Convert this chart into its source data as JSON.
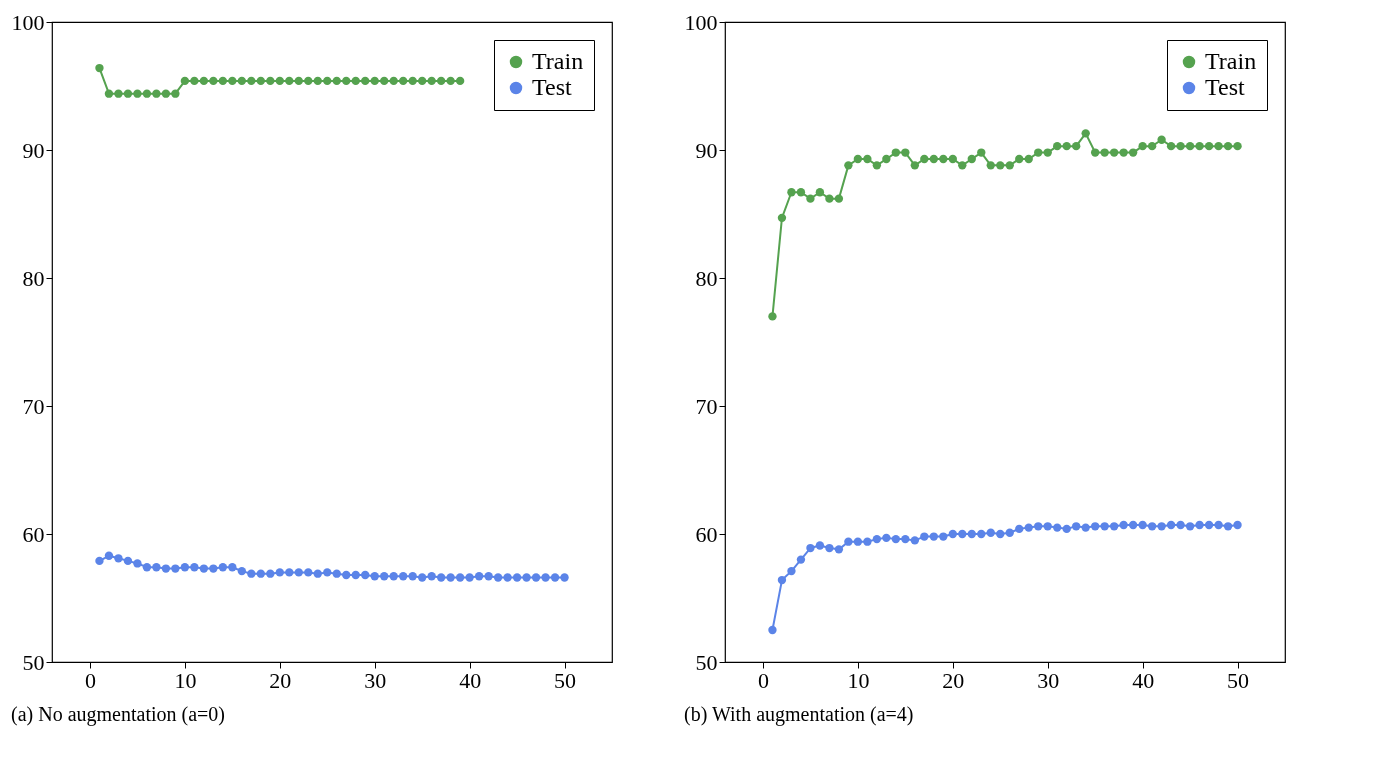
{
  "chart_data": [
    {
      "type": "line",
      "title": "(a) No augmentation (a=0)",
      "x": [
        1,
        2,
        3,
        4,
        5,
        6,
        7,
        8,
        9,
        10,
        11,
        12,
        13,
        14,
        15,
        16,
        17,
        18,
        19,
        20,
        21,
        22,
        23,
        24,
        25,
        26,
        27,
        28,
        29,
        30,
        31,
        32,
        33,
        34,
        35,
        36,
        37,
        38,
        39,
        40,
        41,
        42,
        43,
        44,
        45,
        46,
        47,
        48,
        49,
        50
      ],
      "xlim": [
        -4,
        55
      ],
      "xticks": [
        0,
        10,
        20,
        30,
        40,
        50
      ],
      "ylim": [
        50,
        100
      ],
      "yticks": [
        50,
        60,
        70,
        80,
        90,
        100
      ],
      "grid": false,
      "legend": "top right",
      "marker": "circle",
      "line_style": "solid",
      "series": [
        {
          "name": "Train",
          "color": "#55a24f",
          "values": [
            96.4,
            94.4,
            94.4,
            94.4,
            94.4,
            94.4,
            94.4,
            94.4,
            94.4,
            95.4,
            95.4,
            95.4,
            95.4,
            95.4,
            95.4,
            95.4,
            95.4,
            95.4,
            95.4,
            95.4,
            95.4,
            95.4,
            95.4,
            95.4,
            95.4,
            95.4,
            95.4,
            95.4,
            95.4,
            95.4,
            95.4,
            95.4,
            95.4,
            95.4,
            95.4,
            95.4,
            95.4,
            95.4,
            95.4,
            null,
            null,
            null,
            null,
            null,
            null,
            null,
            null,
            null,
            null,
            null
          ]
        },
        {
          "name": "Test",
          "color": "#5b84e8",
          "values": [
            57.9,
            58.3,
            58.1,
            57.9,
            57.7,
            57.4,
            57.4,
            57.3,
            57.3,
            57.4,
            57.4,
            57.3,
            57.3,
            57.4,
            57.4,
            57.1,
            56.9,
            56.9,
            56.9,
            57.0,
            57.0,
            57.0,
            57.0,
            56.9,
            57.0,
            56.9,
            56.8,
            56.8,
            56.8,
            56.7,
            56.7,
            56.7,
            56.7,
            56.7,
            56.6,
            56.7,
            56.6,
            56.6,
            56.6,
            56.6,
            56.7,
            56.7,
            56.6,
            56.6,
            56.6,
            56.6,
            56.6,
            56.6,
            56.6,
            56.6
          ]
        }
      ]
    },
    {
      "type": "line",
      "title": "(b) With augmentation (a=4)",
      "x": [
        1,
        2,
        3,
        4,
        5,
        6,
        7,
        8,
        9,
        10,
        11,
        12,
        13,
        14,
        15,
        16,
        17,
        18,
        19,
        20,
        21,
        22,
        23,
        24,
        25,
        26,
        27,
        28,
        29,
        30,
        31,
        32,
        33,
        34,
        35,
        36,
        37,
        38,
        39,
        40,
        41,
        42,
        43,
        44,
        45,
        46,
        47,
        48,
        49,
        50
      ],
      "xlim": [
        -4,
        55
      ],
      "xticks": [
        0,
        10,
        20,
        30,
        40,
        50
      ],
      "ylim": [
        50,
        100
      ],
      "yticks": [
        50,
        60,
        70,
        80,
        90,
        100
      ],
      "grid": false,
      "legend": "top right",
      "marker": "circle",
      "line_style": "solid",
      "series": [
        {
          "name": "Train",
          "color": "#55a24f",
          "values": [
            77.0,
            84.7,
            86.7,
            86.7,
            86.2,
            86.7,
            86.2,
            86.2,
            88.8,
            89.3,
            89.3,
            88.8,
            89.3,
            89.8,
            89.8,
            88.8,
            89.3,
            89.3,
            89.3,
            89.3,
            88.8,
            89.3,
            89.8,
            88.8,
            88.8,
            88.8,
            89.3,
            89.3,
            89.8,
            89.8,
            90.3,
            90.3,
            90.3,
            91.3,
            89.8,
            89.8,
            89.8,
            89.8,
            89.8,
            90.3,
            90.3,
            90.8,
            90.3,
            90.3,
            90.3,
            90.3,
            90.3,
            90.3,
            90.3,
            90.3
          ]
        },
        {
          "name": "Test",
          "color": "#5b84e8",
          "values": [
            52.5,
            56.4,
            57.1,
            58.0,
            58.9,
            59.1,
            58.9,
            58.8,
            59.4,
            59.4,
            59.4,
            59.6,
            59.7,
            59.6,
            59.6,
            59.5,
            59.8,
            59.8,
            59.8,
            60.0,
            60.0,
            60.0,
            60.0,
            60.1,
            60.0,
            60.1,
            60.4,
            60.5,
            60.6,
            60.6,
            60.5,
            60.4,
            60.6,
            60.5,
            60.6,
            60.6,
            60.6,
            60.7,
            60.7,
            60.7,
            60.6,
            60.6,
            60.7,
            60.7,
            60.6,
            60.7,
            60.7,
            60.7,
            60.6,
            60.7
          ]
        }
      ]
    }
  ]
}
